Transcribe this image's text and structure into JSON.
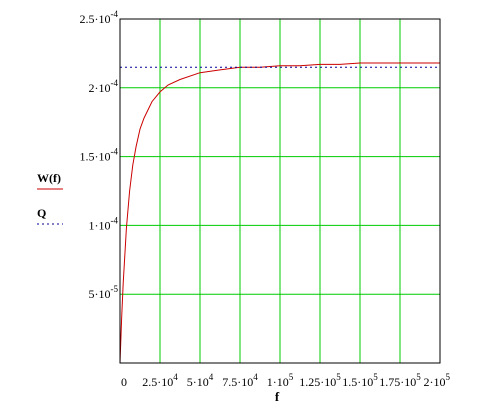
{
  "chart_data": {
    "type": "line",
    "xlabel": "f",
    "ylabel": "",
    "xlim": [
      0,
      200000
    ],
    "ylim": [
      0,
      0.00025
    ],
    "grid": true,
    "legend_position": "left",
    "x_ticks": [
      {
        "value": 0,
        "mant": "0",
        "exp": ""
      },
      {
        "value": 25000,
        "mant": "2.5·10",
        "exp": "4"
      },
      {
        "value": 50000,
        "mant": "5·10",
        "exp": "4"
      },
      {
        "value": 75000,
        "mant": "7.5·10",
        "exp": "4"
      },
      {
        "value": 100000,
        "mant": "1·10",
        "exp": "5"
      },
      {
        "value": 125000,
        "mant": "1.25·10",
        "exp": "5"
      },
      {
        "value": 150000,
        "mant": "1.5·10",
        "exp": "5"
      },
      {
        "value": 175000,
        "mant": "1.75·10",
        "exp": "5"
      },
      {
        "value": 200000,
        "mant": "2·10",
        "exp": "5"
      }
    ],
    "y_ticks": [
      {
        "value": 5e-05,
        "mant": "5·10",
        "exp": "-5"
      },
      {
        "value": 0.0001,
        "mant": "1·10",
        "exp": "-4"
      },
      {
        "value": 0.00015,
        "mant": "1.5·10",
        "exp": "-4"
      },
      {
        "value": 0.0002,
        "mant": "2·10",
        "exp": "-4"
      },
      {
        "value": 0.00025,
        "mant": "2.5·10",
        "exp": "-4"
      }
    ],
    "series": [
      {
        "name": "W(f)",
        "color": "#cc0000",
        "style": "solid",
        "x": [
          0,
          1000,
          2000,
          4000,
          6000,
          8000,
          10000,
          12500,
          15000,
          20000,
          25000,
          30000,
          37500,
          50000,
          62500,
          75000,
          87500,
          100000,
          112500,
          125000,
          137500,
          150000,
          162500,
          175000,
          187500,
          200000
        ],
        "y": [
          0.0,
          3.2e-05,
          5.8e-05,
          9.8e-05,
          0.000125,
          0.000144,
          0.000157,
          0.00017,
          0.000178,
          0.00019,
          0.000197,
          0.000202,
          0.000206,
          0.000211,
          0.000213,
          0.000215,
          0.000215,
          0.000216,
          0.000216,
          0.000217,
          0.000217,
          0.000218,
          0.000218,
          0.000218,
          0.000218,
          0.000218
        ]
      },
      {
        "name": "Q",
        "color": "#000099",
        "style": "dotted",
        "x": [
          0,
          200000
        ],
        "y": [
          0.000215,
          0.000215
        ]
      }
    ]
  }
}
